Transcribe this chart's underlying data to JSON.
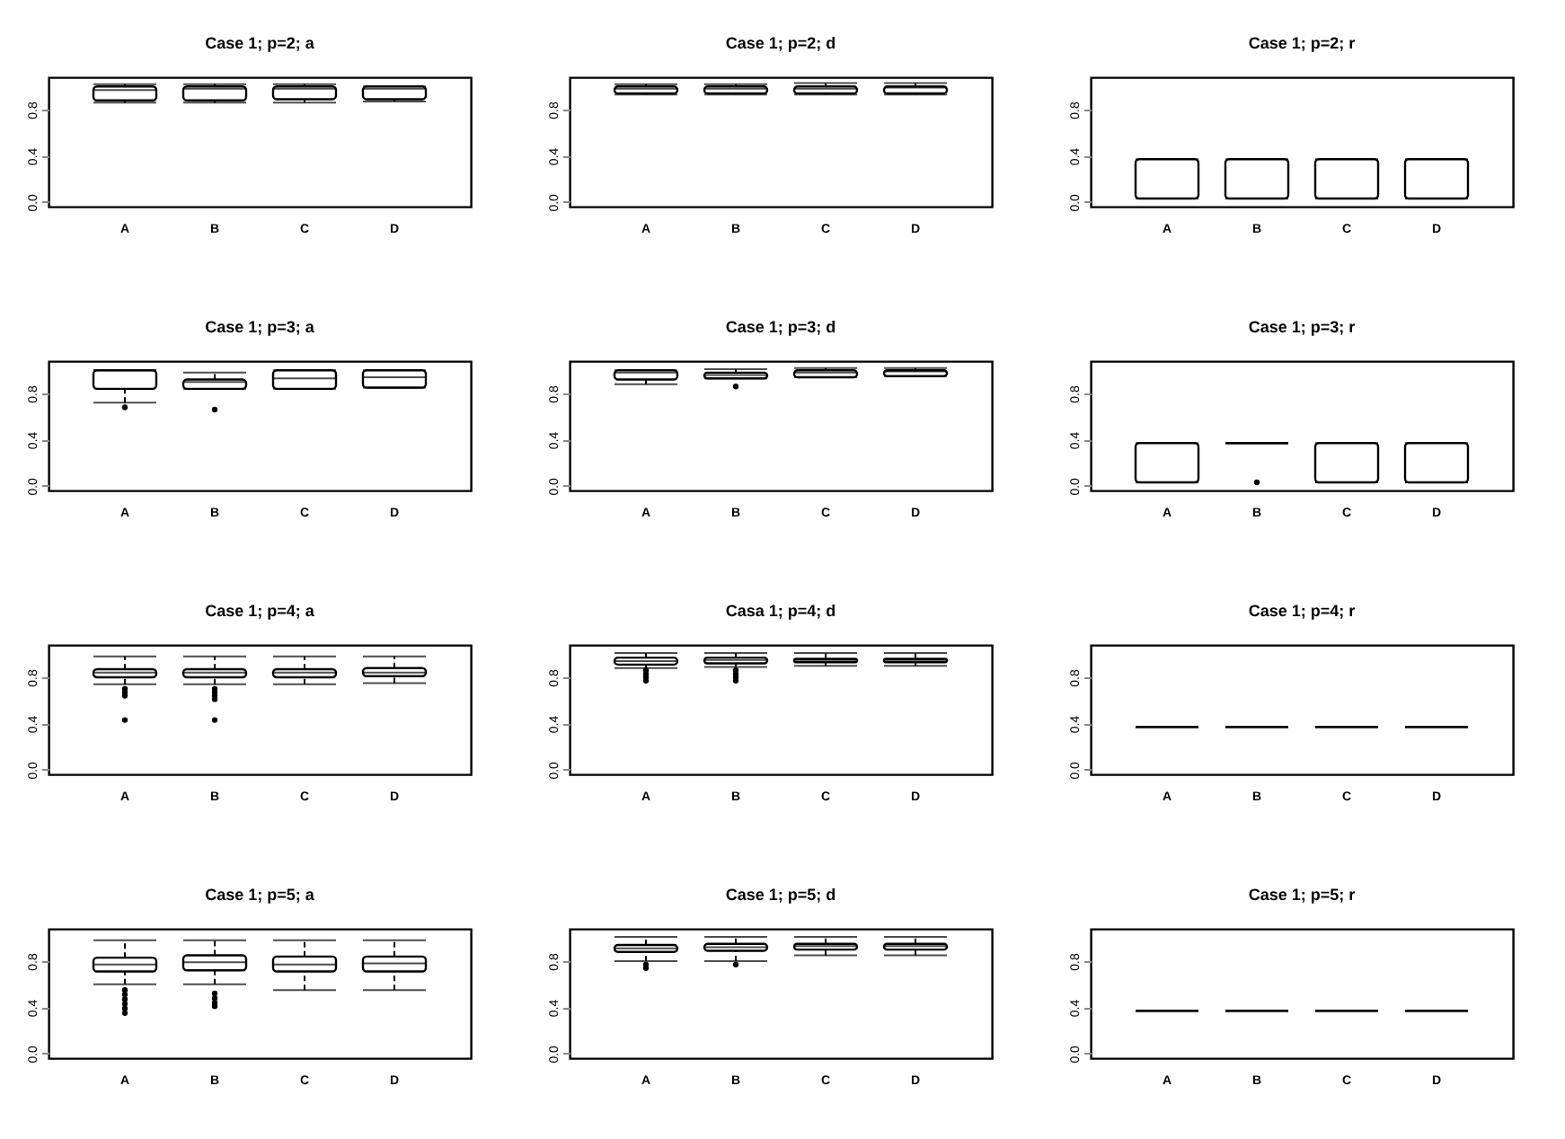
{
  "chart_data": [
    {
      "type": "box",
      "title": "Case 1; p=2; a",
      "categories": [
        "A",
        "B",
        "C",
        "D"
      ],
      "ylim": [
        -0.04,
        1.08
      ],
      "yticks": [
        {
          "value": 0,
          "label": "0.0"
        },
        {
          "value": 0.4,
          "label": "0.4"
        },
        {
          "value": 0.8,
          "label": "0.8"
        }
      ],
      "boxes": [
        {
          "low": 0.86,
          "q1": 0.88,
          "median": 0.97,
          "q3": 1.0,
          "high": 1.02
        },
        {
          "low": 0.86,
          "q1": 0.88,
          "median": 0.98,
          "q3": 1.0,
          "high": 1.02
        },
        {
          "low": 0.86,
          "q1": 0.89,
          "median": 0.98,
          "q3": 1.0,
          "high": 1.02
        },
        {
          "low": 0.87,
          "q1": 0.89,
          "median": 0.98,
          "q3": 1.0,
          "high": 1.0
        }
      ]
    },
    {
      "type": "box",
      "title": "Case 1; p=2; d",
      "categories": [
        "A",
        "B",
        "C",
        "D"
      ],
      "ylim": [
        -0.04,
        1.08
      ],
      "yticks": [
        {
          "value": 0,
          "label": "0.0"
        },
        {
          "value": 0.4,
          "label": "0.4"
        },
        {
          "value": 0.8,
          "label": "0.8"
        }
      ],
      "boxes": [
        {
          "low": 0.93,
          "q1": 0.94,
          "median": 0.98,
          "q3": 1.0,
          "high": 1.02
        },
        {
          "low": 0.93,
          "q1": 0.94,
          "median": 0.98,
          "q3": 1.0,
          "high": 1.02
        },
        {
          "low": 0.93,
          "q1": 0.94,
          "median": 0.98,
          "q3": 1.0,
          "high": 1.03
        },
        {
          "low": 0.93,
          "q1": 0.94,
          "median": 0.99,
          "q3": 1.0,
          "high": 1.03
        }
      ]
    },
    {
      "type": "box",
      "title": "Case 1; p=2; r",
      "categories": [
        "A",
        "B",
        "C",
        "D"
      ],
      "ylim": [
        -0.04,
        1.08
      ],
      "yticks": [
        {
          "value": 0,
          "label": "0.0"
        },
        {
          "value": 0.4,
          "label": "0.4"
        },
        {
          "value": 0.8,
          "label": "0.8"
        }
      ],
      "boxes": [
        {
          "low": 0.03,
          "q1": 0.03,
          "median": 0.03,
          "q3": 0.37,
          "high": 0.37
        },
        {
          "low": 0.03,
          "q1": 0.03,
          "median": 0.03,
          "q3": 0.37,
          "high": 0.37
        },
        {
          "low": 0.03,
          "q1": 0.03,
          "median": 0.03,
          "q3": 0.37,
          "high": 0.37
        },
        {
          "low": 0.03,
          "q1": 0.03,
          "median": 0.03,
          "q3": 0.37,
          "high": 0.37
        }
      ]
    },
    {
      "type": "box",
      "title": "Case 1; p=3; a",
      "categories": [
        "A",
        "B",
        "C",
        "D"
      ],
      "ylim": [
        -0.04,
        1.08
      ],
      "yticks": [
        {
          "value": 0,
          "label": "0.0"
        },
        {
          "value": 0.4,
          "label": "0.4"
        },
        {
          "value": 0.8,
          "label": "0.8"
        }
      ],
      "boxes": [
        {
          "low": 0.72,
          "q1": 0.84,
          "median": 1.0,
          "q3": 1.0,
          "high": 1.0,
          "outliers": [
            0.68
          ]
        },
        {
          "low": 0.84,
          "q1": 0.84,
          "median": 0.9,
          "q3": 0.92,
          "high": 0.98,
          "outliers": [
            0.66
          ]
        },
        {
          "low": 0.84,
          "q1": 0.84,
          "median": 0.93,
          "q3": 1.0,
          "high": 1.0
        },
        {
          "low": 0.85,
          "q1": 0.85,
          "median": 0.94,
          "q3": 1.0,
          "high": 1.0
        }
      ]
    },
    {
      "type": "box",
      "title": "Case 1; p=3; d",
      "categories": [
        "A",
        "B",
        "C",
        "D"
      ],
      "ylim": [
        -0.04,
        1.08
      ],
      "yticks": [
        {
          "value": 0,
          "label": "0.0"
        },
        {
          "value": 0.4,
          "label": "0.4"
        },
        {
          "value": 0.8,
          "label": "0.8"
        }
      ],
      "boxes": [
        {
          "low": 0.88,
          "q1": 0.92,
          "median": 0.98,
          "q3": 1.0,
          "high": 1.0
        },
        {
          "low": 0.93,
          "q1": 0.93,
          "median": 0.96,
          "q3": 0.98,
          "high": 1.01,
          "outliers": [
            0.86
          ]
        },
        {
          "low": 0.94,
          "q1": 0.94,
          "median": 0.98,
          "q3": 1.0,
          "high": 1.02
        },
        {
          "low": 0.95,
          "q1": 0.95,
          "median": 0.99,
          "q3": 1.0,
          "high": 1.02
        }
      ]
    },
    {
      "type": "box",
      "title": "Case 1; p=3; r",
      "categories": [
        "A",
        "B",
        "C",
        "D"
      ],
      "ylim": [
        -0.04,
        1.08
      ],
      "yticks": [
        {
          "value": 0,
          "label": "0.0"
        },
        {
          "value": 0.4,
          "label": "0.4"
        },
        {
          "value": 0.8,
          "label": "0.8"
        }
      ],
      "boxes": [
        {
          "low": 0.03,
          "q1": 0.03,
          "median": 0.03,
          "q3": 0.37,
          "high": 0.37
        },
        {
          "low": 0.37,
          "q1": 0.37,
          "median": 0.37,
          "q3": 0.37,
          "high": 0.37,
          "outliers": [
            0.03
          ]
        },
        {
          "low": 0.03,
          "q1": 0.03,
          "median": 0.03,
          "q3": 0.37,
          "high": 0.37
        },
        {
          "low": 0.03,
          "q1": 0.03,
          "median": 0.03,
          "q3": 0.37,
          "high": 0.37
        }
      ]
    },
    {
      "type": "box",
      "title": "Case 1; p=4; a",
      "categories": [
        "A",
        "B",
        "C",
        "D"
      ],
      "ylim": [
        -0.04,
        1.08
      ],
      "yticks": [
        {
          "value": 0,
          "label": "0.0"
        },
        {
          "value": 0.4,
          "label": "0.4"
        },
        {
          "value": 0.8,
          "label": "0.8"
        }
      ],
      "boxes": [
        {
          "low": 0.74,
          "q1": 0.8,
          "median": 0.84,
          "q3": 0.87,
          "high": 0.98,
          "outliers": [
            0.7,
            0.67,
            0.64,
            0.43
          ]
        },
        {
          "low": 0.74,
          "q1": 0.8,
          "median": 0.84,
          "q3": 0.87,
          "high": 0.98,
          "outliers": [
            0.7,
            0.67,
            0.64,
            0.61,
            0.43
          ]
        },
        {
          "low": 0.74,
          "q1": 0.8,
          "median": 0.84,
          "q3": 0.87,
          "high": 0.98
        },
        {
          "low": 0.75,
          "q1": 0.81,
          "median": 0.84,
          "q3": 0.88,
          "high": 0.98
        }
      ]
    },
    {
      "type": "box",
      "title": "Casa 1; p=4; d",
      "categories": [
        "A",
        "B",
        "C",
        "D"
      ],
      "ylim": [
        -0.04,
        1.08
      ],
      "yticks": [
        {
          "value": 0,
          "label": "0.0"
        },
        {
          "value": 0.4,
          "label": "0.4"
        },
        {
          "value": 0.8,
          "label": "0.8"
        }
      ],
      "boxes": [
        {
          "low": 0.88,
          "q1": 0.91,
          "median": 0.94,
          "q3": 0.97,
          "high": 1.01,
          "outliers": [
            0.86,
            0.83,
            0.8,
            0.77
          ]
        },
        {
          "low": 0.89,
          "q1": 0.92,
          "median": 0.95,
          "q3": 0.97,
          "high": 1.01,
          "outliers": [
            0.86,
            0.83,
            0.8,
            0.77
          ]
        },
        {
          "low": 0.9,
          "q1": 0.93,
          "median": 0.95,
          "q3": 0.96,
          "high": 1.01
        },
        {
          "low": 0.9,
          "q1": 0.93,
          "median": 0.95,
          "q3": 0.96,
          "high": 1.01
        }
      ]
    },
    {
      "type": "box",
      "title": "Case 1; p=4; r",
      "categories": [
        "A",
        "B",
        "C",
        "D"
      ],
      "ylim": [
        -0.04,
        1.08
      ],
      "yticks": [
        {
          "value": 0,
          "label": "0.0"
        },
        {
          "value": 0.4,
          "label": "0.4"
        },
        {
          "value": 0.8,
          "label": "0.8"
        }
      ],
      "boxes": [
        {
          "low": 0.37,
          "q1": 0.37,
          "median": 0.37,
          "q3": 0.37,
          "high": 0.37
        },
        {
          "low": 0.37,
          "q1": 0.37,
          "median": 0.37,
          "q3": 0.37,
          "high": 0.37
        },
        {
          "low": 0.37,
          "q1": 0.37,
          "median": 0.37,
          "q3": 0.37,
          "high": 0.37
        },
        {
          "low": 0.37,
          "q1": 0.37,
          "median": 0.37,
          "q3": 0.37,
          "high": 0.37
        }
      ]
    },
    {
      "type": "box",
      "title": "Case 1; p=5; a",
      "categories": [
        "A",
        "B",
        "C",
        "D"
      ],
      "ylim": [
        -0.04,
        1.08
      ],
      "yticks": [
        {
          "value": 0,
          "label": "0.0"
        },
        {
          "value": 0.4,
          "label": "0.4"
        },
        {
          "value": 0.8,
          "label": "0.8"
        }
      ],
      "boxes": [
        {
          "low": 0.6,
          "q1": 0.71,
          "median": 0.77,
          "q3": 0.83,
          "high": 0.98,
          "outliers": [
            0.55,
            0.51,
            0.47,
            0.43,
            0.39,
            0.35
          ]
        },
        {
          "low": 0.6,
          "q1": 0.72,
          "median": 0.79,
          "q3": 0.85,
          "high": 0.98,
          "outliers": [
            0.52,
            0.48,
            0.44,
            0.41
          ]
        },
        {
          "low": 0.55,
          "q1": 0.71,
          "median": 0.77,
          "q3": 0.84,
          "high": 0.98
        },
        {
          "low": 0.55,
          "q1": 0.71,
          "median": 0.78,
          "q3": 0.84,
          "high": 0.98
        }
      ]
    },
    {
      "type": "box",
      "title": "Case 1; p=5; d",
      "categories": [
        "A",
        "B",
        "C",
        "D"
      ],
      "ylim": [
        -0.04,
        1.08
      ],
      "yticks": [
        {
          "value": 0,
          "label": "0.0"
        },
        {
          "value": 0.4,
          "label": "0.4"
        },
        {
          "value": 0.8,
          "label": "0.8"
        }
      ],
      "boxes": [
        {
          "low": 0.8,
          "q1": 0.88,
          "median": 0.91,
          "q3": 0.94,
          "high": 1.01,
          "outliers": [
            0.77,
            0.74
          ]
        },
        {
          "low": 0.8,
          "q1": 0.89,
          "median": 0.92,
          "q3": 0.95,
          "high": 1.01,
          "outliers": [
            0.77
          ]
        },
        {
          "low": 0.85,
          "q1": 0.9,
          "median": 0.93,
          "q3": 0.95,
          "high": 1.01
        },
        {
          "low": 0.85,
          "q1": 0.9,
          "median": 0.93,
          "q3": 0.95,
          "high": 1.01
        }
      ]
    },
    {
      "type": "box",
      "title": "Case 1; p=5; r",
      "categories": [
        "A",
        "B",
        "C",
        "D"
      ],
      "ylim": [
        -0.04,
        1.08
      ],
      "yticks": [
        {
          "value": 0,
          "label": "0.0"
        },
        {
          "value": 0.4,
          "label": "0.4"
        },
        {
          "value": 0.8,
          "label": "0.8"
        }
      ],
      "boxes": [
        {
          "low": 0.37,
          "q1": 0.37,
          "median": 0.37,
          "q3": 0.37,
          "high": 0.37
        },
        {
          "low": 0.37,
          "q1": 0.37,
          "median": 0.37,
          "q3": 0.37,
          "high": 0.37
        },
        {
          "low": 0.37,
          "q1": 0.37,
          "median": 0.37,
          "q3": 0.37,
          "high": 0.37
        },
        {
          "low": 0.37,
          "q1": 0.37,
          "median": 0.37,
          "q3": 0.37,
          "high": 0.37
        }
      ]
    }
  ]
}
